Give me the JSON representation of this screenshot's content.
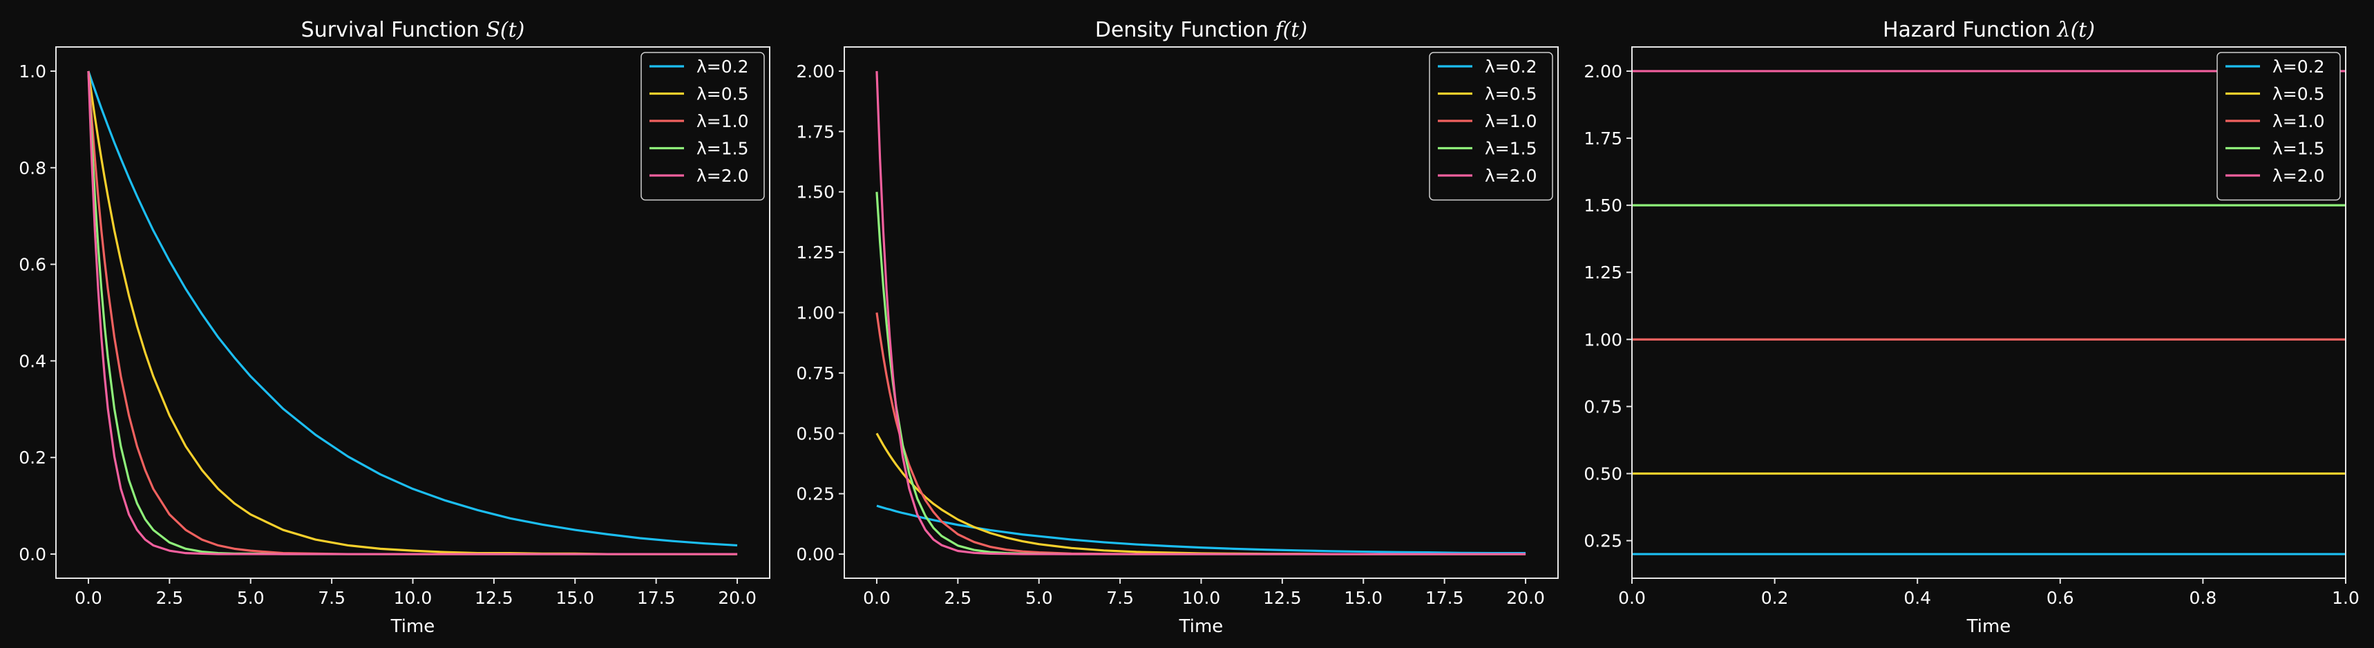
{
  "chart_data": [
    {
      "type": "line",
      "title": "Survival Function",
      "title_math": "S(t)",
      "xlabel": "Time",
      "ylabel": "",
      "xlim": [
        -1.0,
        21.0
      ],
      "ylim": [
        -0.05,
        1.05
      ],
      "xticks": [
        0.0,
        2.5,
        5.0,
        7.5,
        10.0,
        12.5,
        15.0,
        17.5,
        20.0
      ],
      "xtick_labels": [
        "0.0",
        "2.5",
        "5.0",
        "7.5",
        "10.0",
        "12.5",
        "15.0",
        "17.5",
        "20.0"
      ],
      "yticks": [
        0.0,
        0.2,
        0.4,
        0.6,
        0.8,
        1.0
      ],
      "ytick_labels": [
        "0.0",
        "0.2",
        "0.4",
        "0.6",
        "0.8",
        "1.0"
      ],
      "grid": false,
      "legend_position": "top-right",
      "x": [
        0,
        0.1,
        0.2,
        0.3,
        0.4,
        0.5,
        0.6,
        0.8,
        1.0,
        1.25,
        1.5,
        1.75,
        2.0,
        2.5,
        3.0,
        3.5,
        4.0,
        4.5,
        5.0,
        6.0,
        7.0,
        8.0,
        9.0,
        10.0,
        11.0,
        12.0,
        13.0,
        14.0,
        15.0,
        16.0,
        17.0,
        18.0,
        19.0,
        20.0
      ],
      "series": [
        {
          "name": "λ=0.2",
          "color": "#1cbef2",
          "values": [
            1.0,
            0.98,
            0.961,
            0.942,
            0.923,
            0.905,
            0.887,
            0.852,
            0.819,
            0.779,
            0.741,
            0.705,
            0.67,
            0.607,
            0.549,
            0.497,
            0.449,
            0.407,
            0.368,
            0.301,
            0.247,
            0.202,
            0.165,
            0.135,
            0.111,
            0.091,
            0.074,
            0.061,
            0.05,
            0.041,
            0.033,
            0.027,
            0.022,
            0.018
          ]
        },
        {
          "name": "λ=0.5",
          "color": "#f7d02c",
          "values": [
            1.0,
            0.951,
            0.905,
            0.861,
            0.819,
            0.779,
            0.741,
            0.67,
            0.607,
            0.535,
            0.472,
            0.417,
            0.368,
            0.287,
            0.223,
            0.174,
            0.135,
            0.105,
            0.082,
            0.05,
            0.03,
            0.018,
            0.011,
            0.007,
            0.004,
            0.002,
            0.002,
            0.001,
            0.001,
            0.0,
            0.0,
            0.0,
            0.0,
            0.0
          ]
        },
        {
          "name": "λ=1.0",
          "color": "#f0615f",
          "values": [
            1.0,
            0.905,
            0.819,
            0.741,
            0.67,
            0.607,
            0.549,
            0.449,
            0.368,
            0.287,
            0.223,
            0.174,
            0.135,
            0.082,
            0.05,
            0.03,
            0.018,
            0.011,
            0.007,
            0.002,
            0.001,
            0.0,
            0.0,
            0.0,
            0.0,
            0.0,
            0.0,
            0.0,
            0.0,
            0.0,
            0.0,
            0.0,
            0.0,
            0.0
          ]
        },
        {
          "name": "λ=1.5",
          "color": "#8ef07a",
          "values": [
            1.0,
            0.861,
            0.741,
            0.638,
            0.549,
            0.472,
            0.407,
            0.301,
            0.223,
            0.153,
            0.105,
            0.072,
            0.05,
            0.024,
            0.011,
            0.005,
            0.002,
            0.001,
            0.001,
            0.0,
            0.0,
            0.0,
            0.0,
            0.0,
            0.0,
            0.0,
            0.0,
            0.0,
            0.0,
            0.0,
            0.0,
            0.0,
            0.0,
            0.0
          ]
        },
        {
          "name": "λ=2.0",
          "color": "#f2609e",
          "values": [
            1.0,
            0.819,
            0.67,
            0.549,
            0.449,
            0.368,
            0.301,
            0.202,
            0.135,
            0.082,
            0.05,
            0.03,
            0.018,
            0.007,
            0.002,
            0.001,
            0.0,
            0.0,
            0.0,
            0.0,
            0.0,
            0.0,
            0.0,
            0.0,
            0.0,
            0.0,
            0.0,
            0.0,
            0.0,
            0.0,
            0.0,
            0.0,
            0.0,
            0.0
          ]
        }
      ]
    },
    {
      "type": "line",
      "title": "Density Function",
      "title_math": "f(t)",
      "xlabel": "Time",
      "ylabel": "",
      "xlim": [
        -1.0,
        21.0
      ],
      "ylim": [
        -0.1,
        2.1
      ],
      "xticks": [
        0.0,
        2.5,
        5.0,
        7.5,
        10.0,
        12.5,
        15.0,
        17.5,
        20.0
      ],
      "xtick_labels": [
        "0.0",
        "2.5",
        "5.0",
        "7.5",
        "10.0",
        "12.5",
        "15.0",
        "17.5",
        "20.0"
      ],
      "yticks": [
        0.0,
        0.25,
        0.5,
        0.75,
        1.0,
        1.25,
        1.5,
        1.75,
        2.0
      ],
      "ytick_labels": [
        "0.00",
        "0.25",
        "0.50",
        "0.75",
        "1.00",
        "1.25",
        "1.50",
        "1.75",
        "2.00"
      ],
      "grid": false,
      "legend_position": "top-right",
      "x": [
        0,
        0.1,
        0.2,
        0.3,
        0.4,
        0.5,
        0.6,
        0.8,
        1.0,
        1.25,
        1.5,
        1.75,
        2.0,
        2.5,
        3.0,
        3.5,
        4.0,
        4.5,
        5.0,
        6.0,
        7.0,
        8.0,
        9.0,
        10.0,
        11.0,
        12.0,
        13.0,
        14.0,
        15.0,
        16.0,
        17.0,
        18.0,
        19.0,
        20.0
      ],
      "series": [
        {
          "name": "λ=0.2",
          "color": "#1cbef2",
          "values": [
            0.2,
            0.196,
            0.192,
            0.188,
            0.185,
            0.181,
            0.177,
            0.17,
            0.164,
            0.156,
            0.148,
            0.141,
            0.134,
            0.121,
            0.11,
            0.099,
            0.09,
            0.081,
            0.074,
            0.06,
            0.049,
            0.04,
            0.033,
            0.027,
            0.022,
            0.018,
            0.015,
            0.012,
            0.01,
            0.008,
            0.007,
            0.005,
            0.004,
            0.004
          ]
        },
        {
          "name": "λ=0.5",
          "color": "#f7d02c",
          "values": [
            0.5,
            0.476,
            0.452,
            0.43,
            0.409,
            0.389,
            0.37,
            0.335,
            0.303,
            0.268,
            0.236,
            0.208,
            0.184,
            0.143,
            0.112,
            0.087,
            0.068,
            0.053,
            0.041,
            0.025,
            0.015,
            0.009,
            0.006,
            0.003,
            0.002,
            0.001,
            0.001,
            0.0,
            0.0,
            0.0,
            0.0,
            0.0,
            0.0,
            0.0
          ]
        },
        {
          "name": "λ=1.0",
          "color": "#f0615f",
          "values": [
            1.0,
            0.905,
            0.819,
            0.741,
            0.67,
            0.607,
            0.549,
            0.449,
            0.368,
            0.287,
            0.223,
            0.174,
            0.135,
            0.082,
            0.05,
            0.03,
            0.018,
            0.011,
            0.007,
            0.002,
            0.001,
            0.0,
            0.0,
            0.0,
            0.0,
            0.0,
            0.0,
            0.0,
            0.0,
            0.0,
            0.0,
            0.0,
            0.0,
            0.0
          ]
        },
        {
          "name": "λ=1.5",
          "color": "#8ef07a",
          "values": [
            1.5,
            1.291,
            1.111,
            0.957,
            0.823,
            0.709,
            0.61,
            0.452,
            0.335,
            0.23,
            0.158,
            0.108,
            0.075,
            0.035,
            0.017,
            0.008,
            0.004,
            0.002,
            0.001,
            0.0,
            0.0,
            0.0,
            0.0,
            0.0,
            0.0,
            0.0,
            0.0,
            0.0,
            0.0,
            0.0,
            0.0,
            0.0,
            0.0,
            0.0
          ]
        },
        {
          "name": "λ=2.0",
          "color": "#f2609e",
          "values": [
            2.0,
            1.637,
            1.341,
            1.098,
            0.899,
            0.736,
            0.602,
            0.404,
            0.271,
            0.164,
            0.1,
            0.06,
            0.037,
            0.013,
            0.005,
            0.002,
            0.001,
            0.0,
            0.0,
            0.0,
            0.0,
            0.0,
            0.0,
            0.0,
            0.0,
            0.0,
            0.0,
            0.0,
            0.0,
            0.0,
            0.0,
            0.0,
            0.0,
            0.0
          ]
        }
      ]
    },
    {
      "type": "line",
      "title": "Hazard Function",
      "title_math": "λ(t)",
      "xlabel": "Time",
      "ylabel": "",
      "xlim": [
        0.0,
        1.0
      ],
      "ylim": [
        0.11,
        2.09
      ],
      "xticks": [
        0.0,
        0.2,
        0.4,
        0.6,
        0.8,
        1.0
      ],
      "xtick_labels": [
        "0.0",
        "0.2",
        "0.4",
        "0.6",
        "0.8",
        "1.0"
      ],
      "yticks": [
        0.25,
        0.5,
        0.75,
        1.0,
        1.25,
        1.5,
        1.75,
        2.0
      ],
      "ytick_labels": [
        "0.25",
        "0.50",
        "0.75",
        "1.00",
        "1.25",
        "1.50",
        "1.75",
        "2.00"
      ],
      "grid": false,
      "legend_position": "top-right",
      "x": [
        0.0,
        1.0
      ],
      "series": [
        {
          "name": "λ=0.2",
          "color": "#1cbef2",
          "values": [
            0.2,
            0.2
          ]
        },
        {
          "name": "λ=0.5",
          "color": "#f7d02c",
          "values": [
            0.5,
            0.5
          ]
        },
        {
          "name": "λ=1.0",
          "color": "#f0615f",
          "values": [
            1.0,
            1.0
          ]
        },
        {
          "name": "λ=1.5",
          "color": "#8ef07a",
          "values": [
            1.5,
            1.5
          ]
        },
        {
          "name": "λ=2.0",
          "color": "#f2609e",
          "values": [
            2.0,
            2.0
          ]
        }
      ]
    }
  ]
}
